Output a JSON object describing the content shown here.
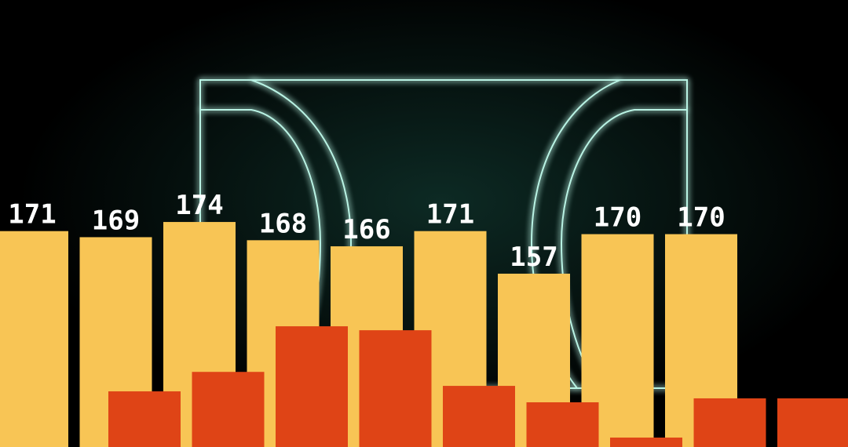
{
  "chart_data": {
    "type": "bar",
    "categories": [
      null,
      null,
      null,
      null,
      null,
      null,
      null,
      null,
      null
    ],
    "series": [
      {
        "color": "#f8c555",
        "values": [
          171,
          169,
          174,
          168,
          166,
          171,
          157,
          170,
          170
        ]
      },
      {
        "color": "#df4416",
        "values": [
          118.3,
          124.7,
          139.7,
          138.4,
          120.1,
          114.7,
          103.1,
          116,
          116
        ]
      }
    ],
    "ylim": [
      100,
      247
    ]
  }
}
